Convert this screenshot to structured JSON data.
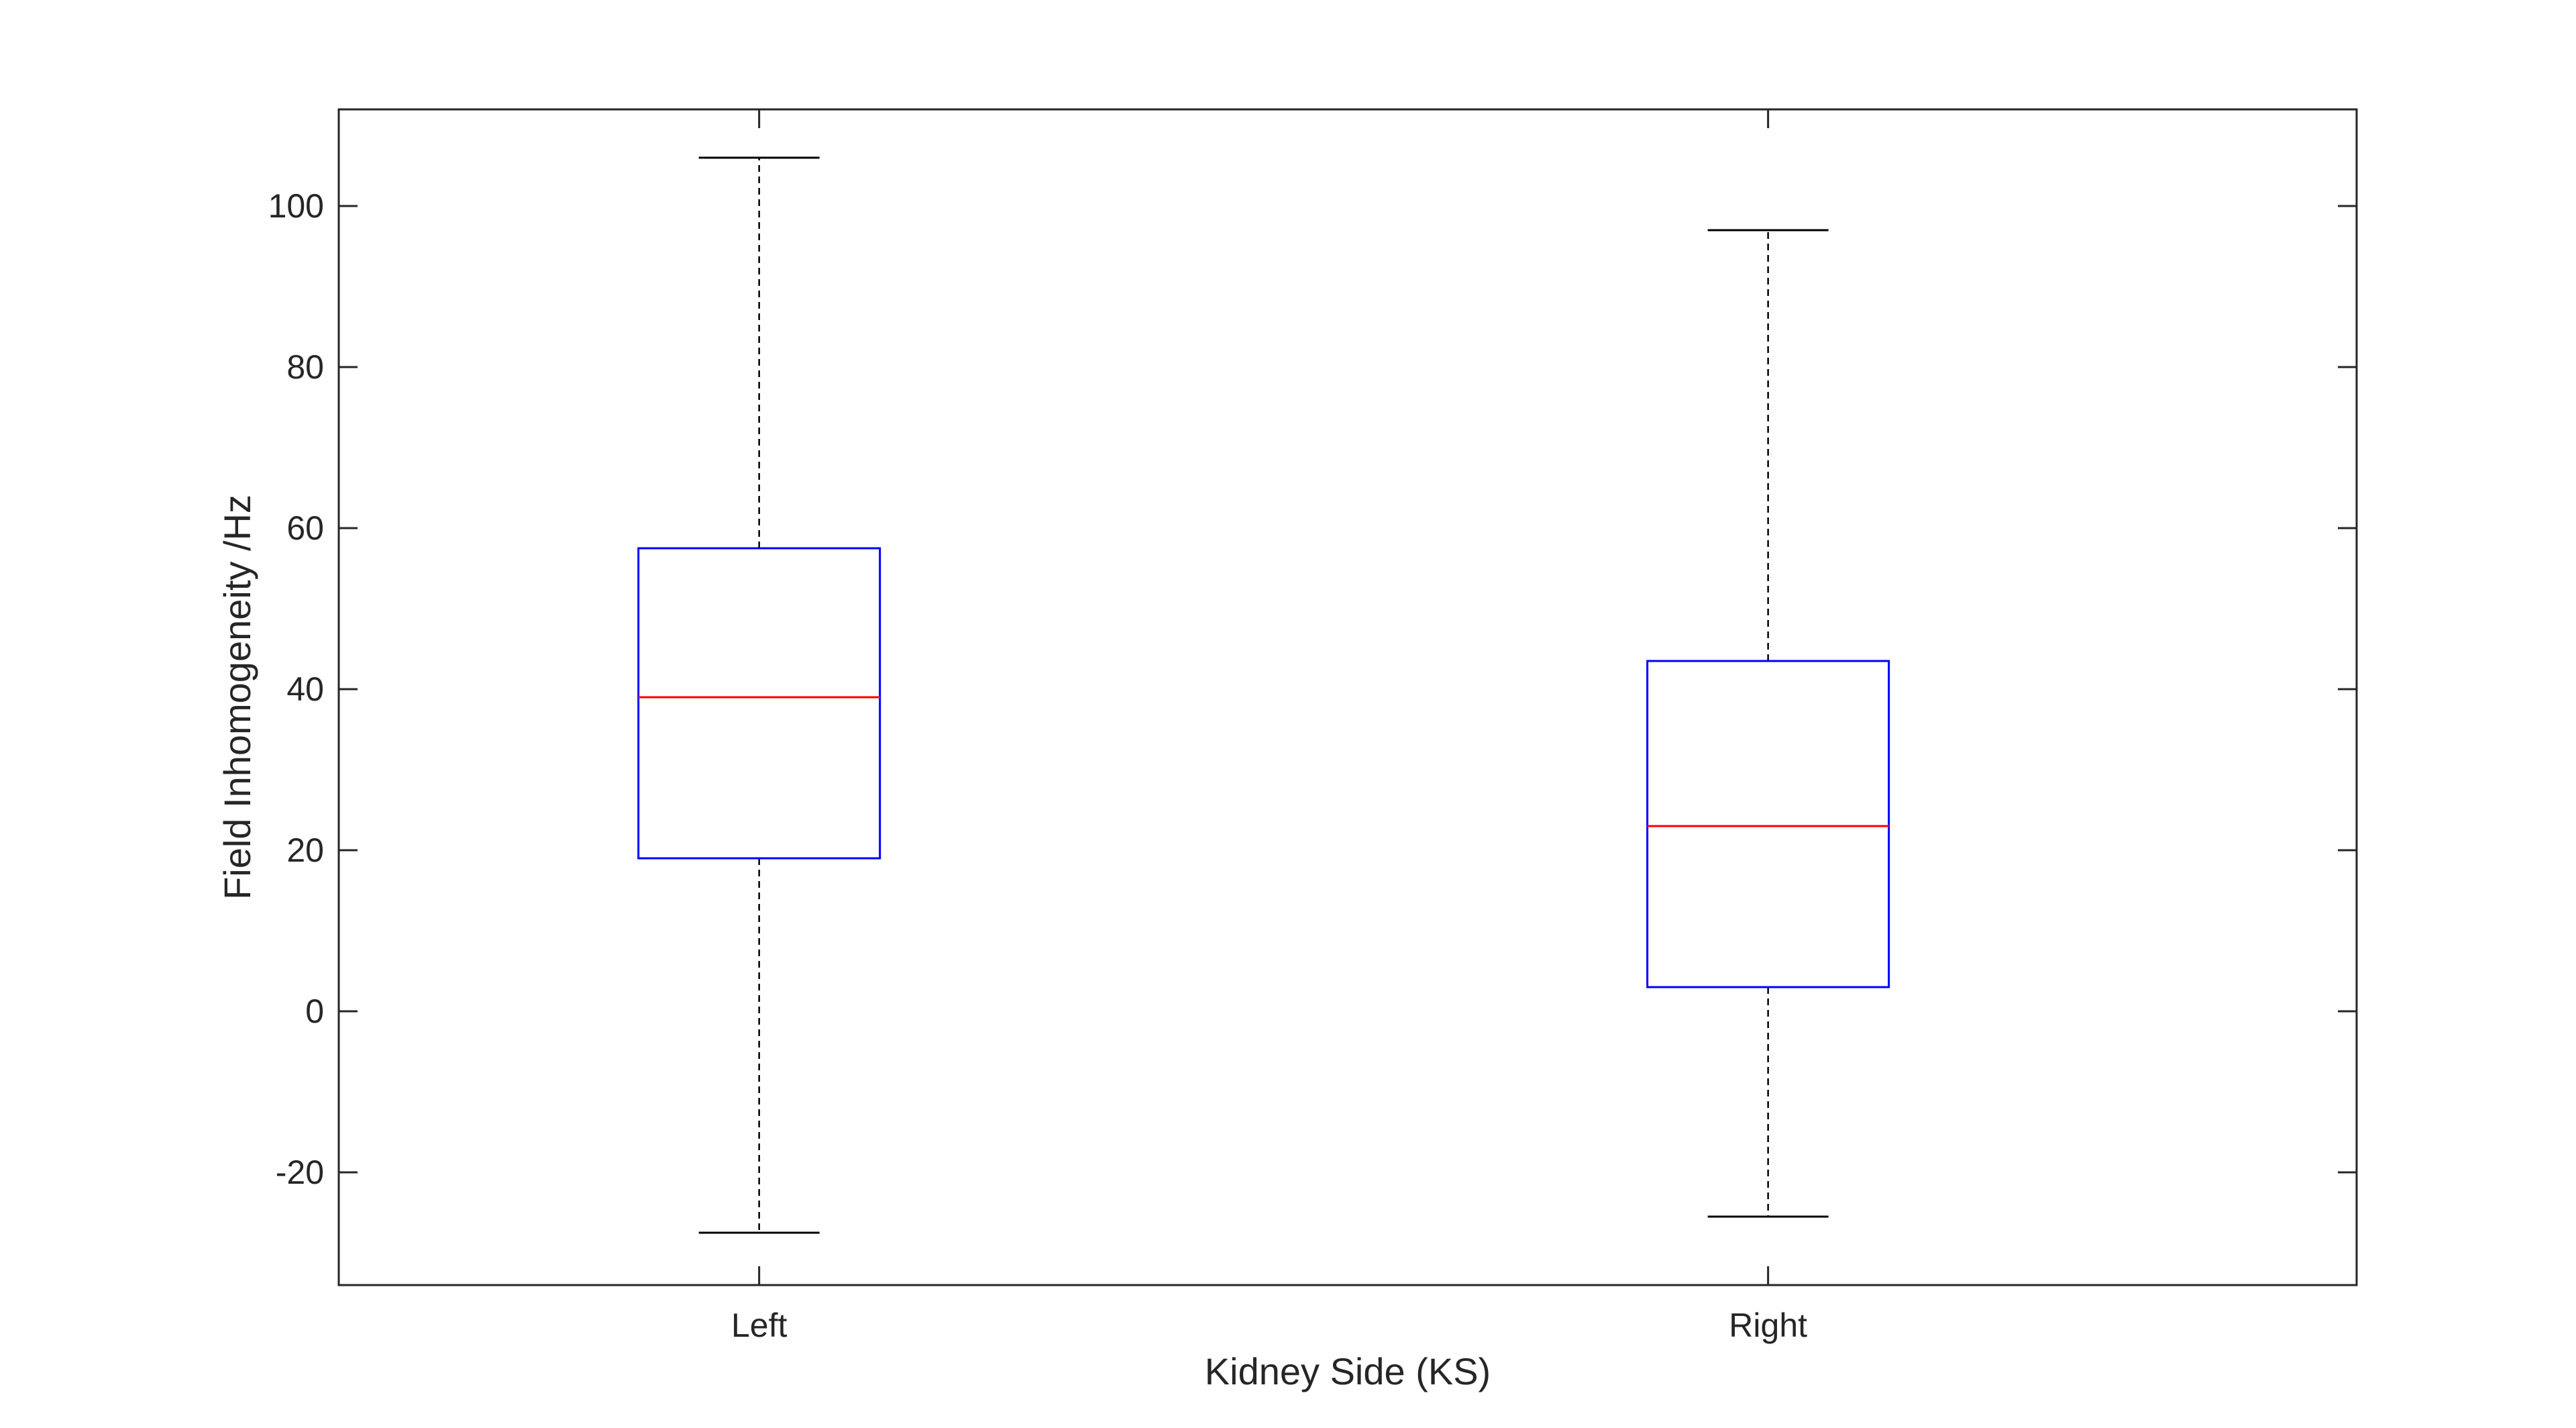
{
  "chart_data": {
    "type": "box",
    "title": "",
    "xlabel": "Kidney Side (KS)",
    "ylabel": "Field Inhomogeneity /Hz",
    "ylim": [
      -34,
      112
    ],
    "yticks": [
      -20,
      0,
      20,
      40,
      60,
      80,
      100
    ],
    "categories": [
      "Left",
      "Right"
    ],
    "boxes": [
      {
        "name": "Left",
        "min": -27.5,
        "q1": 19,
        "median": 39,
        "q3": 57.5,
        "max": 106
      },
      {
        "name": "Right",
        "min": -25.5,
        "q1": 3,
        "median": 23,
        "q3": 43.5,
        "max": 97
      }
    ],
    "colors": {
      "axis": "#262626",
      "box": "#0000ff",
      "median": "#ff0000",
      "whisker": "#000000"
    }
  }
}
